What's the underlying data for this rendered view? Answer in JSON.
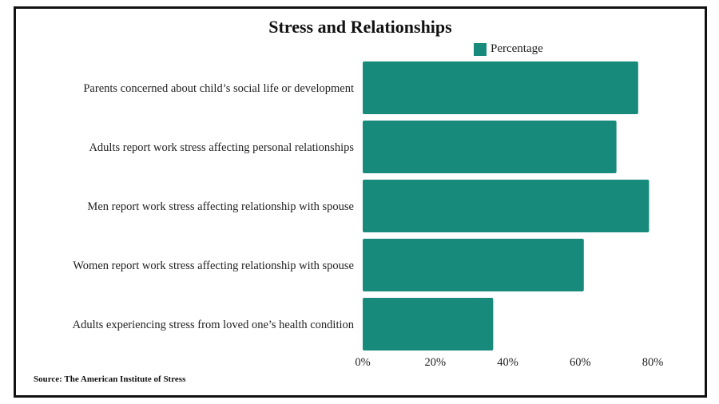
{
  "chart_data": {
    "type": "bar",
    "orientation": "horizontal",
    "title": "Stress and Relationships",
    "categories": [
      "Parents concerned about child’s social life or development",
      "Adults report work stress affecting personal relationships",
      "Men report work stress affecting relationship with spouse",
      "Women report work stress affecting relationship with spouse",
      "Adults experiencing stress from loved one’s health condition"
    ],
    "series": [
      {
        "name": "Percentage",
        "values": [
          76,
          70,
          79,
          61,
          36
        ],
        "color": "#178a7c"
      }
    ],
    "xlim": [
      0,
      80
    ],
    "xticks": [
      "0%",
      "20%",
      "40%",
      "60%",
      "80%"
    ],
    "xtick_values": [
      0,
      20,
      40,
      60,
      80
    ],
    "grid": false,
    "legend_position": "top"
  },
  "source": "Source: The American Institute of Stress"
}
